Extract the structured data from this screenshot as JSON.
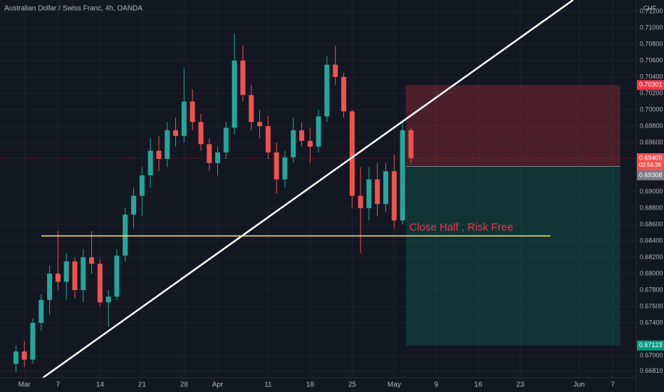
{
  "chart_data": {
    "type": "candlestick",
    "title": "Australian Dollar / Swiss Franc, 4h, OANDA",
    "currency": "CHF",
    "up_color": "#26a69a",
    "down_color": "#ef5350",
    "grid": true,
    "xlim": [
      -1.9,
      73.8
    ],
    "xticks": [
      {
        "value": 1,
        "label": "Mar"
      },
      {
        "value": 5,
        "label": "7"
      },
      {
        "value": 10,
        "label": "14"
      },
      {
        "value": 15,
        "label": "21"
      },
      {
        "value": 20,
        "label": "28"
      },
      {
        "value": 24,
        "label": "Apr"
      },
      {
        "value": 30,
        "label": "11"
      },
      {
        "value": 35,
        "label": "18"
      },
      {
        "value": 40,
        "label": "25"
      },
      {
        "value": 45,
        "label": "May"
      },
      {
        "value": 50,
        "label": "9"
      },
      {
        "value": 55,
        "label": "16"
      },
      {
        "value": 60,
        "label": "23"
      },
      {
        "value": 67,
        "label": "Jun"
      },
      {
        "value": 71,
        "label": "7"
      }
    ],
    "ylim": [
      0.6673,
      0.71339
    ],
    "yticks": [
      {
        "value": 0.712,
        "label": "0.71200"
      },
      {
        "value": 0.71,
        "label": "0.71000"
      },
      {
        "value": 0.708,
        "label": "0.70800"
      },
      {
        "value": 0.706,
        "label": "0.70600"
      },
      {
        "value": 0.704,
        "label": "0.70400"
      },
      {
        "value": 0.702,
        "label": "0.70200"
      },
      {
        "value": 0.7,
        "label": "0.70000"
      },
      {
        "value": 0.698,
        "label": "0.69800"
      },
      {
        "value": 0.696,
        "label": "0.69600"
      },
      {
        "value": 0.69,
        "label": "0.69000"
      },
      {
        "value": 0.688,
        "label": "0.68800"
      },
      {
        "value": 0.686,
        "label": "0.68600"
      },
      {
        "value": 0.684,
        "label": "0.68400"
      },
      {
        "value": 0.682,
        "label": "0.68200"
      },
      {
        "value": 0.68,
        "label": "0.68000"
      },
      {
        "value": 0.678,
        "label": "0.67800"
      },
      {
        "value": 0.676,
        "label": "0.67600"
      },
      {
        "value": 0.674,
        "label": "0.67400"
      },
      {
        "value": 0.67,
        "label": "0.67000"
      },
      {
        "value": 0.6681,
        "label": "0.66810"
      }
    ],
    "open": [
      0.669,
      0.6705,
      0.6695,
      0.674,
      0.6768,
      0.68,
      0.679,
      0.6815,
      0.678,
      0.682,
      0.6812,
      0.6765,
      0.6772,
      0.6822,
      0.6872,
      0.6895,
      0.692,
      0.695,
      0.694,
      0.6975,
      0.6968,
      0.701,
      0.6985,
      0.6958,
      0.6935,
      0.6948,
      0.6978,
      0.706,
      0.7018,
      0.6985,
      0.698,
      0.6948,
      0.6915,
      0.6942,
      0.6975,
      0.6962,
      0.6955,
      0.6992,
      0.7055,
      0.704,
      0.6998,
      0.6895,
      0.688,
      0.6915,
      0.6885,
      0.6925,
      0.6865,
      0.6975
    ],
    "high": [
      0.6712,
      0.6718,
      0.6745,
      0.6775,
      0.681,
      0.6852,
      0.6825,
      0.682,
      0.683,
      0.6852,
      0.6818,
      0.678,
      0.683,
      0.688,
      0.6905,
      0.693,
      0.6965,
      0.6968,
      0.6985,
      0.699,
      0.705,
      0.7025,
      0.6995,
      0.6965,
      0.6955,
      0.6985,
      0.7093,
      0.7078,
      0.703,
      0.7,
      0.6992,
      0.696,
      0.695,
      0.699,
      0.6985,
      0.6978,
      0.7,
      0.7065,
      0.7078,
      0.7045,
      0.7,
      0.693,
      0.693,
      0.6935,
      0.6935,
      0.6945,
      0.6988,
      0.6978
    ],
    "low": [
      0.668,
      0.6686,
      0.669,
      0.673,
      0.675,
      0.678,
      0.6768,
      0.677,
      0.6765,
      0.68,
      0.676,
      0.6735,
      0.6768,
      0.6815,
      0.6855,
      0.687,
      0.6905,
      0.6925,
      0.693,
      0.6955,
      0.696,
      0.6975,
      0.695,
      0.6925,
      0.692,
      0.694,
      0.697,
      0.701,
      0.6975,
      0.6965,
      0.694,
      0.6898,
      0.6905,
      0.6935,
      0.6955,
      0.6935,
      0.6948,
      0.6985,
      0.703,
      0.699,
      0.688,
      0.6825,
      0.6865,
      0.687,
      0.6875,
      0.6855,
      0.686,
      0.6935
    ],
    "close": [
      0.6705,
      0.6695,
      0.674,
      0.6768,
      0.68,
      0.679,
      0.6815,
      0.678,
      0.682,
      0.6812,
      0.6765,
      0.6772,
      0.6822,
      0.6872,
      0.6895,
      0.692,
      0.695,
      0.694,
      0.6975,
      0.6968,
      0.701,
      0.6985,
      0.6958,
      0.6935,
      0.6948,
      0.6978,
      0.706,
      0.7018,
      0.6985,
      0.698,
      0.6948,
      0.6915,
      0.6942,
      0.6975,
      0.6962,
      0.6955,
      0.6992,
      0.7055,
      0.704,
      0.6998,
      0.6895,
      0.688,
      0.6915,
      0.6885,
      0.6925,
      0.6865,
      0.6975,
      0.6941
    ],
    "trend_line": {
      "color": "#ffffff",
      "x": [
        3.2,
        66.3
      ],
      "y": [
        0.6673,
        0.7134
      ]
    },
    "support_line": {
      "color": "#ffeb3b",
      "x": [
        3.03,
        63.6
      ],
      "y": 0.68461
    },
    "annotation": {
      "text": "Close Half , Risk Free",
      "color": "#f23645",
      "x": 46.8,
      "y": 0.6856
    },
    "position": {
      "x": [
        46.4,
        71.9
      ],
      "stop": 0.70301,
      "entry": 0.69308,
      "target": 0.67123,
      "stop_label": "0.70301",
      "entry_label": "0.69308",
      "target_label": "0.67123"
    },
    "last_price": {
      "value": 0.69408,
      "label": "0.69408",
      "countdown": "02:56:38"
    }
  }
}
